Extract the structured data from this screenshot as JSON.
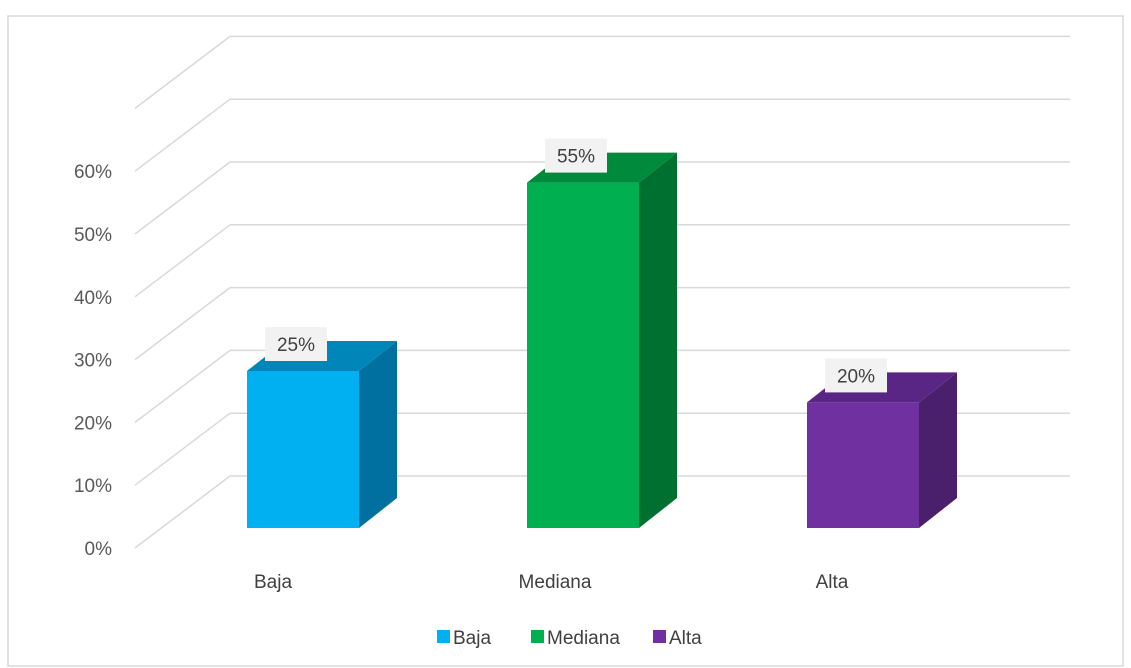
{
  "chart_data": {
    "type": "bar",
    "categories": [
      "Baja",
      "Mediana",
      "Alta"
    ],
    "values": [
      25,
      55,
      20
    ],
    "value_labels": [
      "25%",
      "55%",
      "20%"
    ],
    "colors": {
      "Baja": {
        "front": "#00b0f0",
        "side": "#0070a0",
        "top": "#0086b8"
      },
      "Mediana": {
        "front": "#00b050",
        "side": "#007030",
        "top": "#008a3c"
      },
      "Alta": {
        "front": "#7030a0",
        "side": "#4a1f6b",
        "top": "#5a2685"
      }
    },
    "y_ticks": [
      {
        "value": 0,
        "label": "0%"
      },
      {
        "value": 10,
        "label": "10%"
      },
      {
        "value": 20,
        "label": "20%"
      },
      {
        "value": 30,
        "label": "30%"
      },
      {
        "value": 40,
        "label": "40%"
      },
      {
        "value": 50,
        "label": "50%"
      },
      {
        "value": 60,
        "label": "60%"
      }
    ],
    "ylim": [
      0,
      70
    ],
    "grid": true,
    "three_d": true,
    "legend": {
      "position": "bottom",
      "entries": [
        "Baja",
        "Mediana",
        "Alta"
      ]
    },
    "title": "",
    "xlabel": "",
    "ylabel": ""
  }
}
